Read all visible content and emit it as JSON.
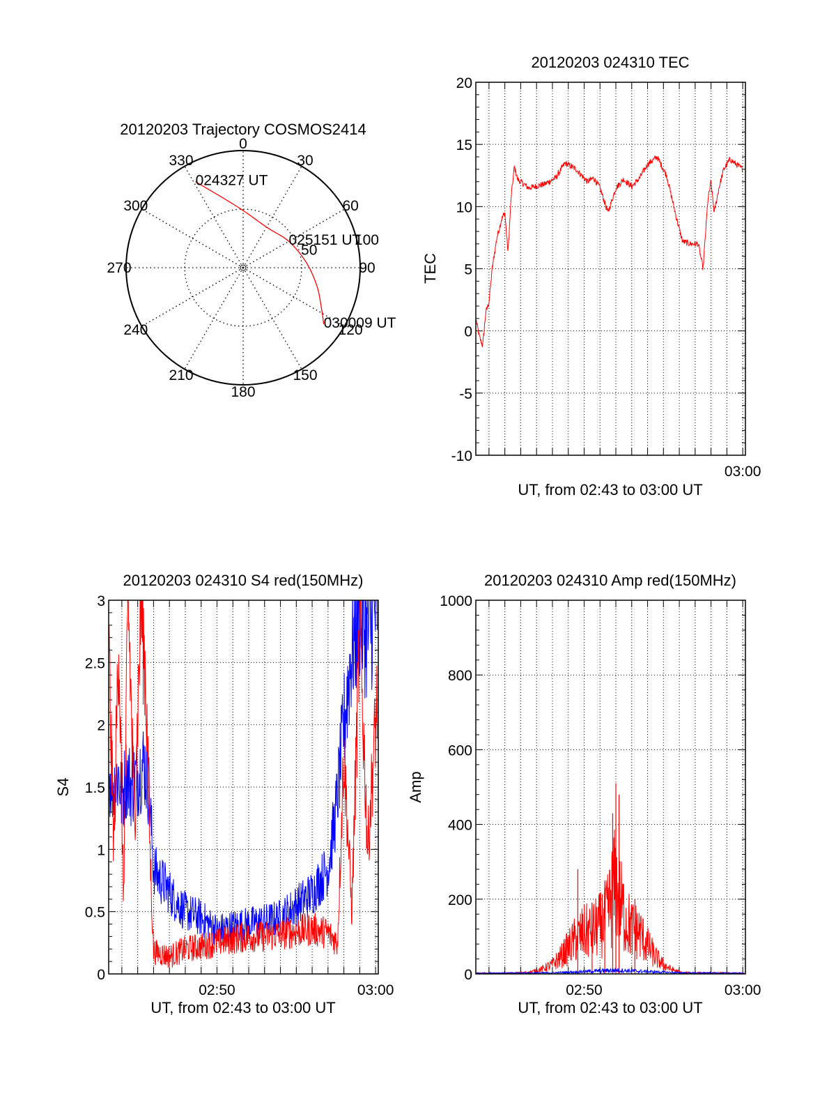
{
  "colors": {
    "red": "#ff0000",
    "blue": "#0000ff",
    "axis": "#000000",
    "grid": "#000000",
    "background": "#ffffff"
  },
  "chart_data": [
    {
      "type": "polar",
      "title": "20120203 Trajectory COSMOS2414",
      "angle_labels": [
        "0",
        "30",
        "60",
        "90",
        "120",
        "150",
        "180",
        "210",
        "240",
        "270",
        "300",
        "330"
      ],
      "radius_labels": [
        "50",
        "100"
      ],
      "rlim": [
        0,
        100
      ],
      "grid": true,
      "series": [
        {
          "color": "red",
          "points": [
            {
              "az": 331,
              "r": 84
            },
            {
              "az": 355,
              "r": 52
            },
            {
              "az": 30,
              "r": 40
            },
            {
              "az": 60,
              "r": 45
            },
            {
              "az": 85,
              "r": 54
            },
            {
              "az": 104,
              "r": 65
            },
            {
              "az": 118,
              "r": 76
            },
            {
              "az": 125,
              "r": 84
            }
          ]
        }
      ],
      "annotations": [
        {
          "text": "024327 UT",
          "az": 331,
          "r": 84
        },
        {
          "text": "025151 UT",
          "az": 60,
          "r": 45
        },
        {
          "text": "030009 UT",
          "az": 125,
          "r": 84
        }
      ]
    },
    {
      "type": "line",
      "title": "20120203 024310 TEC",
      "xlabel": "UT, from 02:43 to 03:00 UT",
      "ylabel": "TEC",
      "xlim": [
        163.17,
        180.17
      ],
      "ylim": [
        -10,
        20
      ],
      "yticks": [
        "-10",
        "-5",
        "0",
        "5",
        "10",
        "15",
        "20"
      ],
      "xticks": [
        {
          "x": 180,
          "label": "03:00"
        }
      ],
      "grid": true,
      "series": [
        {
          "color": "red",
          "points": [
            [
              163.2,
              0.8
            ],
            [
              163.4,
              -0.5
            ],
            [
              163.6,
              -1.2
            ],
            [
              163.8,
              1.5
            ],
            [
              164.0,
              2.3
            ],
            [
              164.2,
              5.0
            ],
            [
              164.5,
              7.5
            ],
            [
              164.8,
              9.0
            ],
            [
              165.0,
              9.5
            ],
            [
              165.2,
              6.3
            ],
            [
              165.4,
              10.8
            ],
            [
              165.6,
              13.2
            ],
            [
              165.8,
              12.2
            ],
            [
              166.5,
              11.5
            ],
            [
              167.5,
              11.8
            ],
            [
              168.2,
              12.3
            ],
            [
              168.8,
              13.5
            ],
            [
              169.5,
              13.0
            ],
            [
              170.2,
              12.0
            ],
            [
              170.6,
              12.3
            ],
            [
              171.0,
              11.5
            ],
            [
              171.5,
              9.5
            ],
            [
              172.0,
              11.5
            ],
            [
              172.5,
              12.2
            ],
            [
              173.0,
              11.6
            ],
            [
              173.5,
              12.3
            ],
            [
              174.0,
              13.4
            ],
            [
              174.6,
              14.0
            ],
            [
              175.2,
              12.5
            ],
            [
              175.8,
              9.2
            ],
            [
              176.2,
              7.2
            ],
            [
              176.7,
              7.0
            ],
            [
              177.2,
              7.0
            ],
            [
              177.5,
              5.0
            ],
            [
              177.8,
              10.5
            ],
            [
              178.0,
              12.0
            ],
            [
              178.2,
              9.5
            ],
            [
              178.5,
              11.5
            ],
            [
              178.8,
              13.0
            ],
            [
              179.2,
              13.8
            ],
            [
              180.0,
              13.0
            ]
          ]
        }
      ]
    },
    {
      "type": "line",
      "title": "20120203 024310 S4 red(150MHz)",
      "xlabel": "UT, from 02:43 to 03:00 UT",
      "ylabel": "S4",
      "xlim": [
        163.17,
        180.17
      ],
      "ylim": [
        0,
        3
      ],
      "yticks": [
        "0",
        "0.5",
        "1",
        "1.5",
        "2",
        "2.5",
        "3"
      ],
      "xticks": [
        {
          "x": 170,
          "label": "02:50"
        },
        {
          "x": 180,
          "label": "03:00"
        }
      ],
      "grid": true,
      "series": [
        {
          "color": "blue",
          "points": [
            [
              163.2,
              1.6
            ],
            [
              163.5,
              1.5
            ],
            [
              163.8,
              1.6
            ],
            [
              164.0,
              1.4
            ],
            [
              164.3,
              1.6
            ],
            [
              164.6,
              1.5
            ],
            [
              165.0,
              1.6
            ],
            [
              165.4,
              1.7
            ],
            [
              165.7,
              1.5
            ],
            [
              166.0,
              0.85
            ],
            [
              166.3,
              0.78
            ],
            [
              166.8,
              0.7
            ],
            [
              167.3,
              0.6
            ],
            [
              168.0,
              0.5
            ],
            [
              169.0,
              0.45
            ],
            [
              170.0,
              0.35
            ],
            [
              171.0,
              0.38
            ],
            [
              172.0,
              0.4
            ],
            [
              173.0,
              0.42
            ],
            [
              174.0,
              0.45
            ],
            [
              175.0,
              0.55
            ],
            [
              176.0,
              0.65
            ],
            [
              177.0,
              0.85
            ],
            [
              177.5,
              1.3
            ],
            [
              178.0,
              2.0
            ],
            [
              178.5,
              2.6
            ],
            [
              179.0,
              2.9
            ],
            [
              179.5,
              2.7
            ],
            [
              180.1,
              3.0
            ]
          ]
        },
        {
          "color": "red",
          "points": [
            [
              163.2,
              2.5
            ],
            [
              163.5,
              1.0
            ],
            [
              163.8,
              2.8
            ],
            [
              164.1,
              0.6
            ],
            [
              164.4,
              3.0
            ],
            [
              164.8,
              1.2
            ],
            [
              165.2,
              3.0
            ],
            [
              165.5,
              2.4
            ],
            [
              165.8,
              0.9
            ],
            [
              166.0,
              0.18
            ],
            [
              167.0,
              0.14
            ],
            [
              168.0,
              0.2
            ],
            [
              169.0,
              0.22
            ],
            [
              170.0,
              0.25
            ],
            [
              171.0,
              0.28
            ],
            [
              172.0,
              0.3
            ],
            [
              173.0,
              0.3
            ],
            [
              174.0,
              0.32
            ],
            [
              175.0,
              0.34
            ],
            [
              176.0,
              0.36
            ],
            [
              177.0,
              0.33
            ],
            [
              177.6,
              0.25
            ],
            [
              178.0,
              1.8
            ],
            [
              178.5,
              0.5
            ],
            [
              179.0,
              2.8
            ],
            [
              179.5,
              1.0
            ],
            [
              180.1,
              2.2
            ]
          ]
        }
      ]
    },
    {
      "type": "line",
      "title": "20120203 024310 Amp red(150MHz)",
      "xlabel": "UT, from 02:43 to 03:00 UT",
      "ylabel": "Amp",
      "xlim": [
        163.17,
        180.17
      ],
      "ylim": [
        0,
        1000
      ],
      "yticks": [
        "0",
        "200",
        "400",
        "600",
        "800",
        "1000"
      ],
      "xticks": [
        {
          "x": 170,
          "label": "02:50"
        },
        {
          "x": 180,
          "label": "03:00"
        }
      ],
      "grid": true,
      "series": [
        {
          "color": "red",
          "points": [
            [
              163.2,
              2
            ],
            [
              165.5,
              2
            ],
            [
              166.5,
              4
            ],
            [
              167.3,
              12
            ],
            [
              168.0,
              25
            ],
            [
              168.5,
              45
            ],
            [
              169.0,
              70
            ],
            [
              169.5,
              95
            ],
            [
              170.0,
              110
            ],
            [
              170.5,
              115
            ],
            [
              171.0,
              130
            ],
            [
              171.5,
              160
            ],
            [
              171.8,
              220
            ],
            [
              172.0,
              240
            ],
            [
              172.2,
              200
            ],
            [
              172.6,
              150
            ],
            [
              173.0,
              120
            ],
            [
              173.5,
              110
            ],
            [
              174.0,
              75
            ],
            [
              174.5,
              45
            ],
            [
              175.0,
              25
            ],
            [
              175.5,
              12
            ],
            [
              176.2,
              3
            ],
            [
              180.1,
              2
            ]
          ],
          "spikes": [
            [
              169.6,
              280
            ],
            [
              170.5,
              190
            ],
            [
              171.3,
              230
            ],
            [
              171.8,
              430
            ],
            [
              172.0,
              510
            ],
            [
              172.2,
              480
            ],
            [
              173.2,
              200
            ]
          ]
        },
        {
          "color": "blue",
          "points": [
            [
              163.2,
              2
            ],
            [
              168.0,
              3
            ],
            [
              170.0,
              6
            ],
            [
              172.0,
              10
            ],
            [
              174.0,
              6
            ],
            [
              176.0,
              3
            ],
            [
              180.1,
              2
            ]
          ]
        }
      ]
    }
  ]
}
